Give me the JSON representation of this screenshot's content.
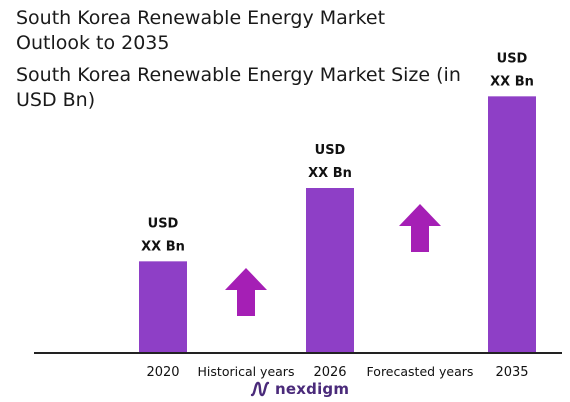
{
  "header": {
    "title": "South Korea Renewable Energy Market Outlook to 2035",
    "subtitle": "South Korea Renewable Energy Market Size (in USD Bn)"
  },
  "colors": {
    "bar": "#8e3fc6",
    "arrow": "#a51fb5",
    "axis": "#222222",
    "logo": "#4a2a7a"
  },
  "chart_data": {
    "type": "bar",
    "title": "South Korea Renewable Energy Market Size (in USD Bn)",
    "categories": [
      "2020",
      "2026",
      "2035"
    ],
    "values": [
      10,
      18,
      28
    ],
    "value_labels": [
      "USD XX Bn",
      "USD XX Bn",
      "USD XX Bn"
    ],
    "value_label_lines": [
      [
        "USD",
        "XX Bn"
      ],
      [
        "USD",
        "XX Bn"
      ],
      [
        "USD",
        "XX Bn"
      ]
    ],
    "ylim": [
      0,
      30
    ],
    "grid": false,
    "annotations": [
      {
        "text": "Historical years",
        "between": [
          "2020",
          "2026"
        ],
        "arrow": "up"
      },
      {
        "text": "Forecasted years",
        "between": [
          "2026",
          "2035"
        ],
        "arrow": "up"
      }
    ]
  },
  "logo": {
    "icon": "nexdigm-wave-icon",
    "text": "nexdigm"
  }
}
